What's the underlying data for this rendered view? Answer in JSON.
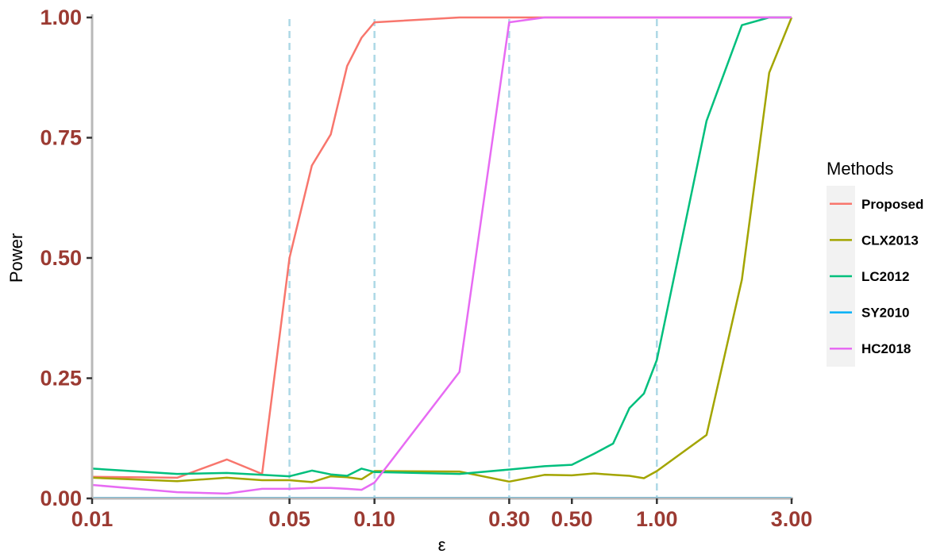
{
  "chart_data": {
    "type": "line",
    "xlabel": "ε",
    "ylabel": "Power",
    "xscale": "log10",
    "xlim": [
      0.01,
      3.0
    ],
    "ylim": [
      0.0,
      1.0
    ],
    "x_ticks": [
      0.01,
      0.05,
      0.1,
      0.3,
      0.5,
      1.0,
      3.0
    ],
    "x_tick_labels": [
      "0.01",
      "0.05",
      "0.10",
      "0.30",
      "0.50",
      "1.00",
      "3.00"
    ],
    "y_ticks": [
      0.0,
      0.25,
      0.5,
      0.75,
      1.0
    ],
    "y_tick_labels": [
      "0.00",
      "0.25",
      "0.50",
      "0.75",
      "1.00"
    ],
    "reference_lines_x": [
      0.05,
      0.1,
      0.3,
      1.0
    ],
    "reference_line_color": "#add8e6",
    "grid": false,
    "legend": {
      "title": "Methods",
      "position": "right"
    },
    "series": [
      {
        "name": "Proposed",
        "color": "#F8766D",
        "x": [
          0.01,
          0.02,
          0.03,
          0.04,
          0.05,
          0.06,
          0.07,
          0.08,
          0.09,
          0.1,
          0.2,
          0.3,
          0.4,
          0.5,
          1.0,
          2.0,
          3.0
        ],
        "y": [
          0.045,
          0.043,
          0.081,
          0.051,
          0.5,
          0.692,
          0.757,
          0.899,
          0.958,
          0.99,
          1.0,
          1.0,
          1.0,
          1.0,
          1.0,
          1.0,
          1.0
        ]
      },
      {
        "name": "CLX2013",
        "color": "#A3A500",
        "x": [
          0.01,
          0.02,
          0.03,
          0.04,
          0.05,
          0.06,
          0.07,
          0.08,
          0.09,
          0.1,
          0.2,
          0.3,
          0.4,
          0.5,
          0.6,
          0.7,
          0.8,
          0.9,
          1.0,
          1.5,
          2.0,
          2.5,
          3.0
        ],
        "y": [
          0.043,
          0.036,
          0.043,
          0.038,
          0.038,
          0.034,
          0.046,
          0.044,
          0.04,
          0.057,
          0.056,
          0.035,
          0.049,
          0.048,
          0.052,
          0.049,
          0.047,
          0.042,
          0.057,
          0.132,
          0.455,
          0.885,
          1.0
        ]
      },
      {
        "name": "LC2012",
        "color": "#00BF7D",
        "x": [
          0.01,
          0.02,
          0.03,
          0.04,
          0.05,
          0.06,
          0.07,
          0.08,
          0.09,
          0.1,
          0.2,
          0.3,
          0.4,
          0.5,
          0.6,
          0.7,
          0.8,
          0.9,
          1.0,
          1.5,
          2.0,
          2.5,
          3.0
        ],
        "y": [
          0.062,
          0.051,
          0.053,
          0.049,
          0.046,
          0.058,
          0.05,
          0.047,
          0.062,
          0.055,
          0.051,
          0.06,
          0.067,
          0.07,
          0.093,
          0.114,
          0.188,
          0.218,
          0.288,
          0.785,
          0.984,
          1.0,
          1.0
        ]
      },
      {
        "name": "SY2010",
        "color": "#00B0F6",
        "x": [
          0.01,
          3.0
        ],
        "y": [
          0.001,
          0.001
        ]
      },
      {
        "name": "HC2018",
        "color": "#E76BF3",
        "x": [
          0.01,
          0.02,
          0.03,
          0.04,
          0.05,
          0.06,
          0.07,
          0.08,
          0.09,
          0.1,
          0.2,
          0.3,
          0.4,
          0.5,
          1.0,
          2.0,
          3.0
        ],
        "y": [
          0.028,
          0.013,
          0.01,
          0.02,
          0.02,
          0.022,
          0.022,
          0.02,
          0.018,
          0.033,
          0.263,
          0.99,
          1.0,
          1.0,
          1.0,
          1.0,
          1.0
        ]
      }
    ]
  }
}
